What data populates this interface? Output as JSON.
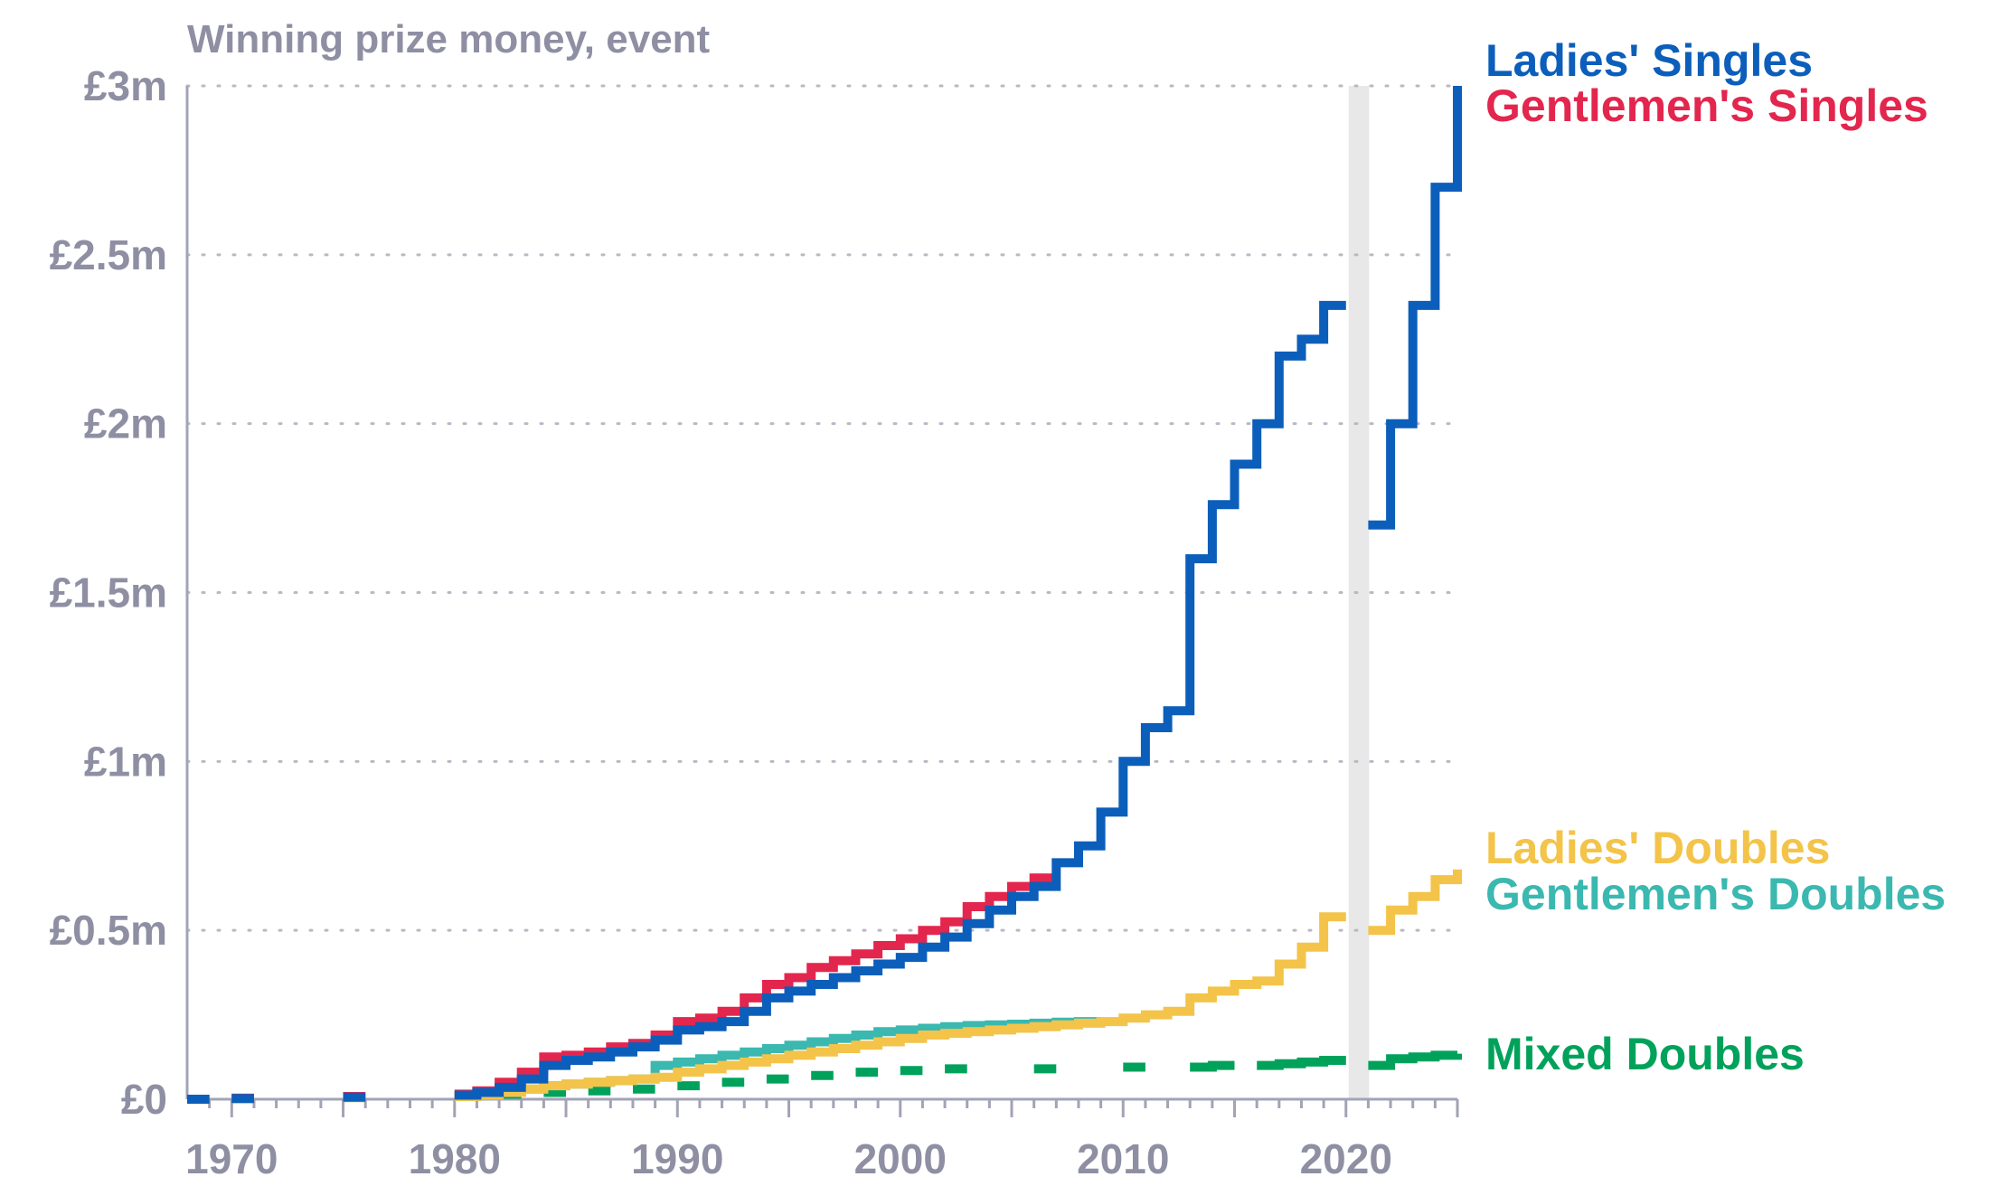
{
  "chart_data": {
    "type": "line",
    "step": true,
    "title": "Winning prize money, event",
    "xlabel": "",
    "ylabel": "",
    "xlim": [
      1968,
      2025
    ],
    "ylim": [
      0,
      3
    ],
    "y_unit": "£m",
    "x_ticks": [
      1970,
      1980,
      1990,
      2000,
      2010,
      2020
    ],
    "x_tick_labels": [
      "1970",
      "1980",
      "1990",
      "2000",
      "2010",
      "2020"
    ],
    "y_ticks": [
      0,
      0.5,
      1,
      1.5,
      2,
      2.5,
      3
    ],
    "y_tick_labels": [
      "£0",
      "£0.5m",
      "£1m",
      "£1.5m",
      "£2m",
      "£2.5m",
      "£3m"
    ],
    "grid": "horizontal dotted",
    "legend_position": "right, at line ends",
    "gap_band": [
      2020,
      2021
    ],
    "gap_band_color": "#e8e8e8",
    "series": [
      {
        "name": "Mixed Doubles",
        "color": "#00a25b",
        "x": [
          1968,
          1970,
          1975,
          1980,
          1982,
          1984,
          1986,
          1988,
          1990,
          1992,
          1994,
          1996,
          1998,
          2000,
          2002,
          2006,
          2010,
          2013,
          2014,
          2016,
          2017,
          2018,
          2019,
          2021,
          2022,
          2023,
          2024,
          2025
        ],
        "y": [
          0,
          0.002,
          0.005,
          0.008,
          0.015,
          0.02,
          0.025,
          0.03,
          0.04,
          0.05,
          0.06,
          0.07,
          0.08,
          0.085,
          0.09,
          0.09,
          0.095,
          0.095,
          0.1,
          0.1,
          0.105,
          0.11,
          0.115,
          0.1,
          0.12,
          0.125,
          0.13,
          0.135
        ]
      },
      {
        "name": "Gentlemen's Doubles",
        "color": "#3bb8b0",
        "x": [
          1968,
          1970,
          1975,
          1980,
          1981,
          1982,
          1983,
          1984,
          1985,
          1986,
          1987,
          1988,
          1989,
          1990,
          1991,
          1992,
          1993,
          1994,
          1995,
          1996,
          1997,
          1998,
          1999,
          2000,
          2001,
          2002,
          2003,
          2004,
          2005,
          2006,
          2007,
          2008
        ],
        "y": [
          0,
          0.003,
          0.006,
          0.01,
          0.015,
          0.02,
          0.03,
          0.04,
          0.045,
          0.05,
          0.055,
          0.06,
          0.1,
          0.11,
          0.12,
          0.13,
          0.14,
          0.15,
          0.16,
          0.17,
          0.18,
          0.19,
          0.2,
          0.205,
          0.21,
          0.215,
          0.218,
          0.22,
          0.222,
          0.225,
          0.228,
          0.23
        ]
      },
      {
        "name": "Ladies' Doubles",
        "color": "#f3c449",
        "x": [
          1968,
          1970,
          1975,
          1980,
          1981,
          1982,
          1983,
          1984,
          1985,
          1986,
          1987,
          1988,
          1989,
          1990,
          1991,
          1992,
          1993,
          1994,
          1995,
          1996,
          1997,
          1998,
          1999,
          2000,
          2001,
          2002,
          2003,
          2004,
          2005,
          2006,
          2007,
          2008,
          2009,
          2010,
          2011,
          2012,
          2013,
          2014,
          2015,
          2016,
          2017,
          2018,
          2019,
          2021,
          2022,
          2023,
          2024,
          2025
        ],
        "y": [
          0,
          0.002,
          0.005,
          0.008,
          0.012,
          0.02,
          0.03,
          0.04,
          0.045,
          0.05,
          0.055,
          0.06,
          0.065,
          0.08,
          0.09,
          0.1,
          0.11,
          0.12,
          0.13,
          0.14,
          0.15,
          0.16,
          0.17,
          0.18,
          0.19,
          0.195,
          0.2,
          0.205,
          0.21,
          0.215,
          0.22,
          0.225,
          0.23,
          0.24,
          0.25,
          0.26,
          0.3,
          0.32,
          0.34,
          0.35,
          0.4,
          0.45,
          0.54,
          0.5,
          0.56,
          0.6,
          0.65,
          0.68
        ]
      },
      {
        "name": "Gentlemen's Singles",
        "color": "#e3264e",
        "x": [
          1968,
          1970,
          1975,
          1980,
          1981,
          1982,
          1983,
          1984,
          1985,
          1986,
          1987,
          1988,
          1989,
          1990,
          1991,
          1992,
          1993,
          1994,
          1995,
          1996,
          1997,
          1998,
          1999,
          2000,
          2001,
          2002,
          2003,
          2004,
          2005,
          2006
        ],
        "y": [
          0,
          0.003,
          0.008,
          0.015,
          0.025,
          0.05,
          0.08,
          0.125,
          0.13,
          0.14,
          0.155,
          0.165,
          0.19,
          0.23,
          0.24,
          0.26,
          0.3,
          0.34,
          0.36,
          0.39,
          0.41,
          0.43,
          0.455,
          0.475,
          0.5,
          0.525,
          0.57,
          0.6,
          0.63,
          0.655
        ]
      },
      {
        "name": "Ladies' Singles",
        "color": "#0c5ebb",
        "x": [
          1968,
          1970,
          1975,
          1980,
          1981,
          1982,
          1983,
          1984,
          1985,
          1986,
          1987,
          1988,
          1989,
          1990,
          1991,
          1992,
          1993,
          1994,
          1995,
          1996,
          1997,
          1998,
          1999,
          2000,
          2001,
          2002,
          2003,
          2004,
          2005,
          2006,
          2007,
          2008,
          2009,
          2010,
          2011,
          2012,
          2013,
          2014,
          2015,
          2016,
          2017,
          2018,
          2019,
          2021,
          2022,
          2023,
          2024,
          2025
        ],
        "y": [
          0,
          0.002,
          0.006,
          0.012,
          0.02,
          0.035,
          0.06,
          0.1,
          0.115,
          0.125,
          0.14,
          0.155,
          0.175,
          0.205,
          0.215,
          0.23,
          0.26,
          0.3,
          0.32,
          0.34,
          0.36,
          0.38,
          0.4,
          0.42,
          0.45,
          0.48,
          0.52,
          0.56,
          0.6,
          0.63,
          0.7,
          0.75,
          0.85,
          1.0,
          1.1,
          1.15,
          1.6,
          1.76,
          1.88,
          2.0,
          2.2,
          2.25,
          2.35,
          1.7,
          2.0,
          2.35,
          2.7,
          3.0
        ]
      }
    ],
    "legend": [
      {
        "label": "Ladies' Singles",
        "color": "#0c5ebb"
      },
      {
        "label": "Gentlemen's Singles",
        "color": "#e3264e"
      },
      {
        "label": "Ladies' Doubles",
        "color": "#f3c449"
      },
      {
        "label": "Gentlemen's Doubles",
        "color": "#3bb8b0"
      },
      {
        "label": "Mixed Doubles",
        "color": "#00a25b"
      }
    ]
  }
}
